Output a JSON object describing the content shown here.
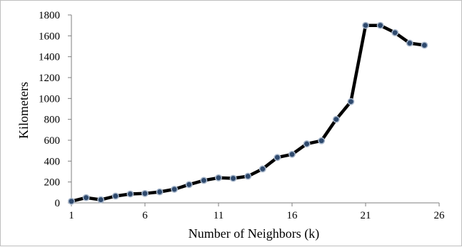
{
  "chart_data": {
    "type": "line",
    "title": "",
    "xlabel": "Number of Neighbors (k)",
    "ylabel": "Kilometers",
    "xlim": [
      1,
      26
    ],
    "ylim": [
      0,
      1800
    ],
    "xticks": [
      1,
      6,
      11,
      16,
      21,
      26
    ],
    "yticks": [
      0,
      200,
      400,
      600,
      800,
      1000,
      1200,
      1400,
      1600,
      1800
    ],
    "grid": false,
    "legend": "none",
    "colors": {
      "line": "#000000",
      "marker_fill": "#2f4a6e",
      "marker_edge": "#a9b8cc"
    },
    "series": [
      {
        "x": [
          1,
          2,
          3,
          4,
          5,
          6,
          7,
          8,
          9,
          10,
          11,
          12,
          13,
          14,
          15,
          16,
          17,
          18,
          19,
          20,
          21,
          22,
          23,
          24,
          25
        ],
        "values": [
          15,
          50,
          30,
          65,
          85,
          90,
          105,
          130,
          175,
          215,
          240,
          235,
          255,
          325,
          435,
          465,
          565,
          595,
          800,
          970,
          1700,
          1700,
          1630,
          1530,
          1510
        ]
      }
    ]
  }
}
